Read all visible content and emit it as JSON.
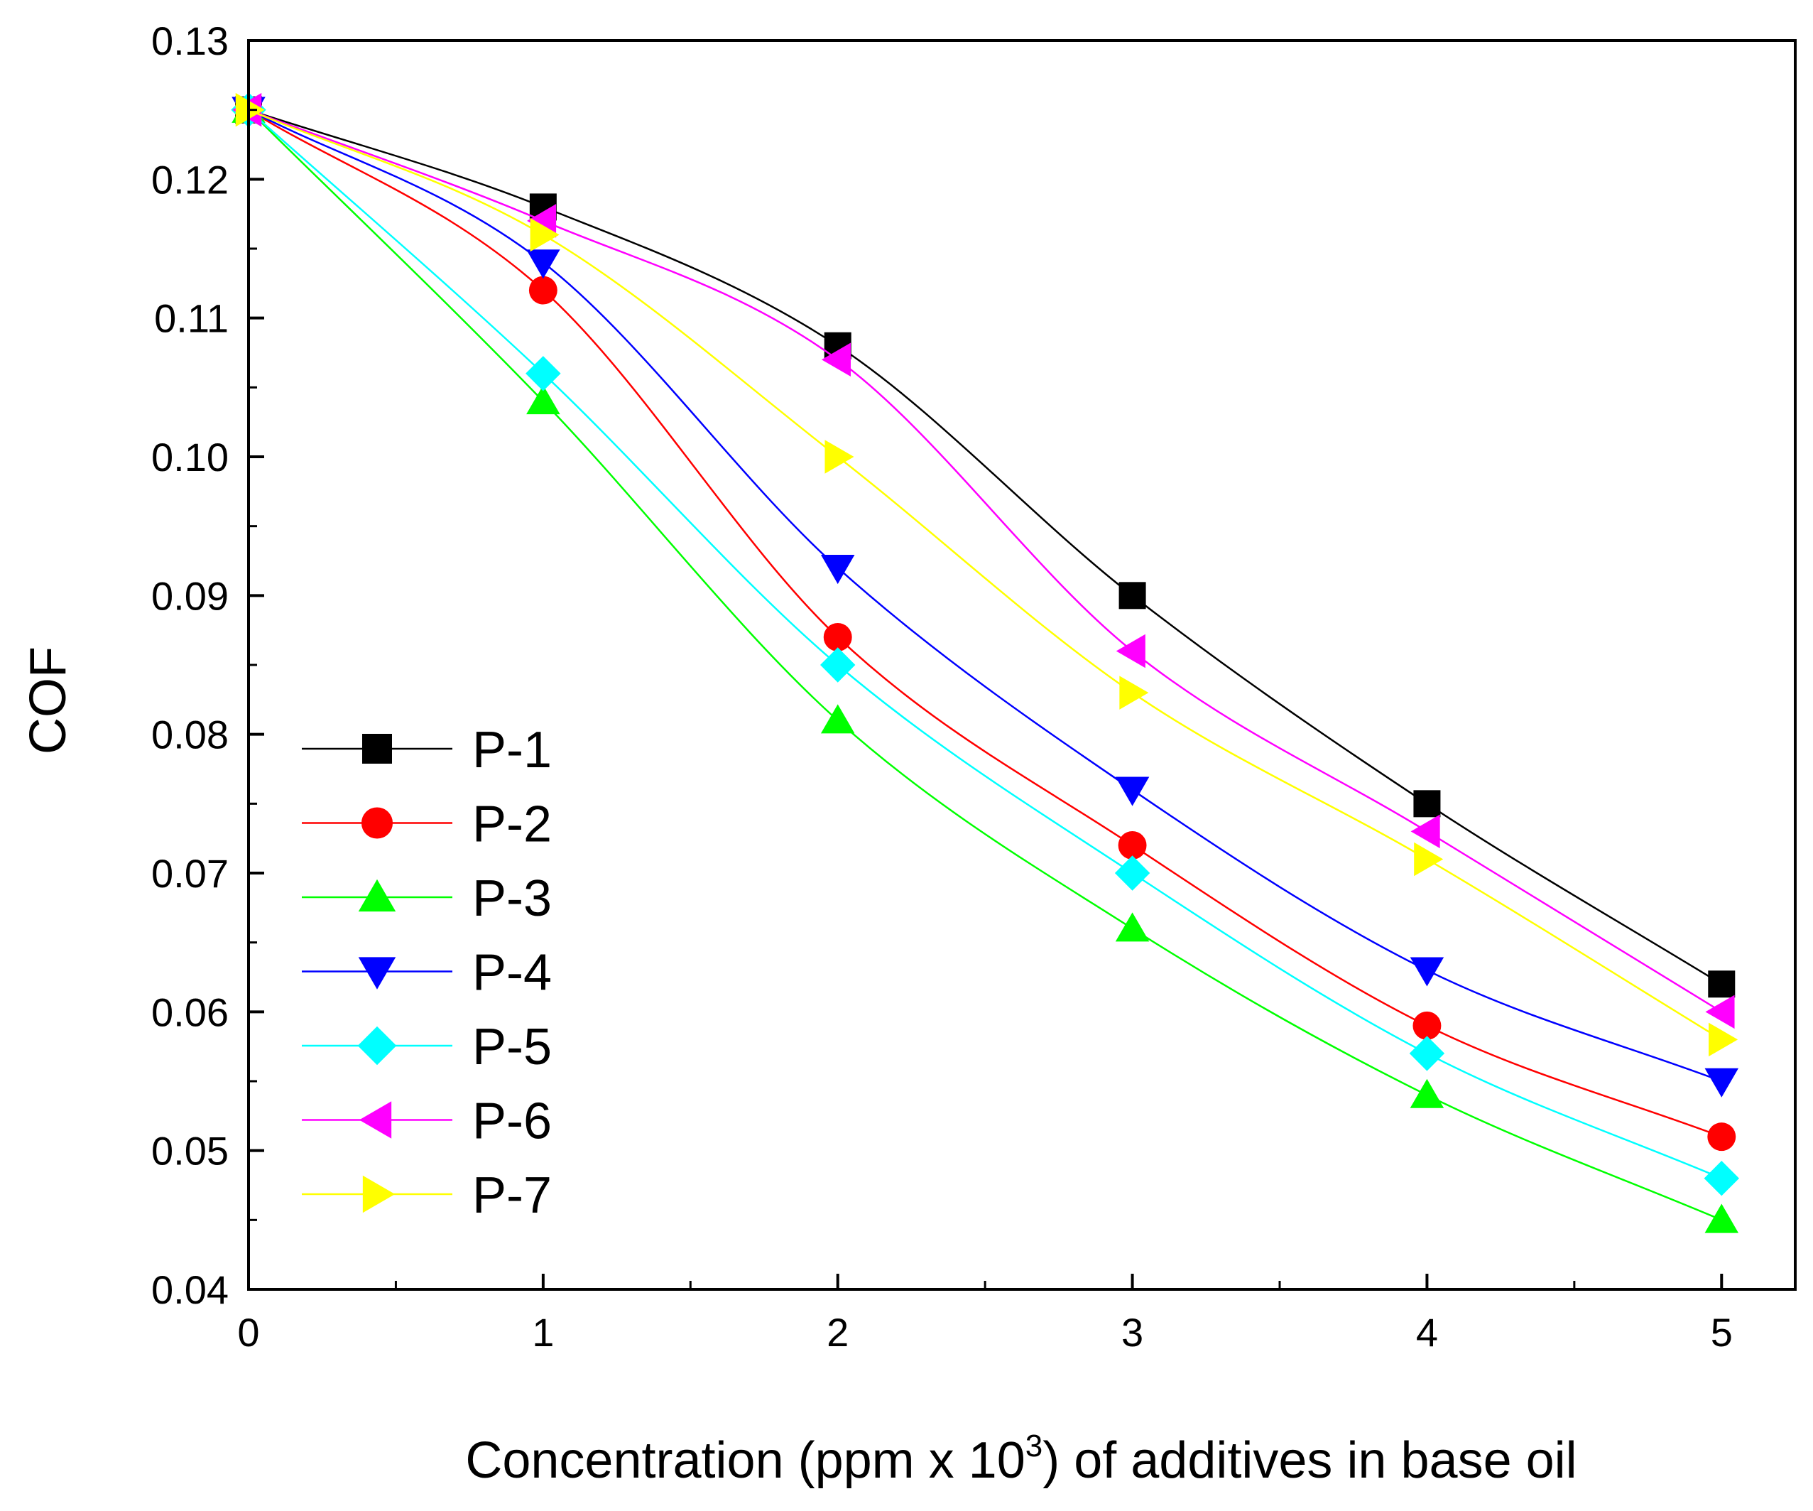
{
  "chart_data": {
    "type": "line",
    "title": "",
    "xlabel": {
      "main": "Concentration (ppm x 10",
      "sup": "3",
      "tail": ") of additives in base oil"
    },
    "ylabel": "COF",
    "xlim": [
      0,
      5.25
    ],
    "ylim": [
      0.04,
      0.13
    ],
    "x_ticks": [
      0,
      1,
      2,
      3,
      4,
      5
    ],
    "x_tick_labels": [
      "0",
      "1",
      "2",
      "3",
      "4",
      "5"
    ],
    "y_ticks": [
      0.04,
      0.05,
      0.06,
      0.07,
      0.08,
      0.09,
      0.1,
      0.11,
      0.12,
      0.13
    ],
    "y_tick_labels": [
      "0.04",
      "0.05",
      "0.06",
      "0.07",
      "0.08",
      "0.09",
      "0.10",
      "0.11",
      "0.12",
      "0.13"
    ],
    "x": [
      0,
      1,
      2,
      3,
      4,
      5
    ],
    "legend_position": "left-middle",
    "series": [
      {
        "name": "P-1",
        "color": "#000000",
        "marker": "square",
        "values": [
          0.125,
          0.118,
          0.108,
          0.09,
          0.075,
          0.062
        ]
      },
      {
        "name": "P-2",
        "color": "#ff0000",
        "marker": "circle",
        "values": [
          0.125,
          0.112,
          0.087,
          0.072,
          0.059,
          0.051
        ]
      },
      {
        "name": "P-3",
        "color": "#00ff00",
        "marker": "triangle-up",
        "values": [
          0.125,
          0.104,
          0.081,
          0.066,
          0.054,
          0.045
        ]
      },
      {
        "name": "P-4",
        "color": "#0000ff",
        "marker": "triangle-down",
        "values": [
          0.125,
          0.114,
          0.092,
          0.076,
          0.063,
          0.055
        ]
      },
      {
        "name": "P-5",
        "color": "#00ffff",
        "marker": "diamond",
        "values": [
          0.125,
          0.106,
          0.085,
          0.07,
          0.057,
          0.048
        ]
      },
      {
        "name": "P-6",
        "color": "#ff00ff",
        "marker": "triangle-left",
        "values": [
          0.125,
          0.117,
          0.107,
          0.086,
          0.073,
          0.06
        ]
      },
      {
        "name": "P-7",
        "color": "#ffff00",
        "marker": "triangle-right",
        "values": [
          0.125,
          0.116,
          0.1,
          0.083,
          0.071,
          0.058
        ]
      }
    ]
  }
}
